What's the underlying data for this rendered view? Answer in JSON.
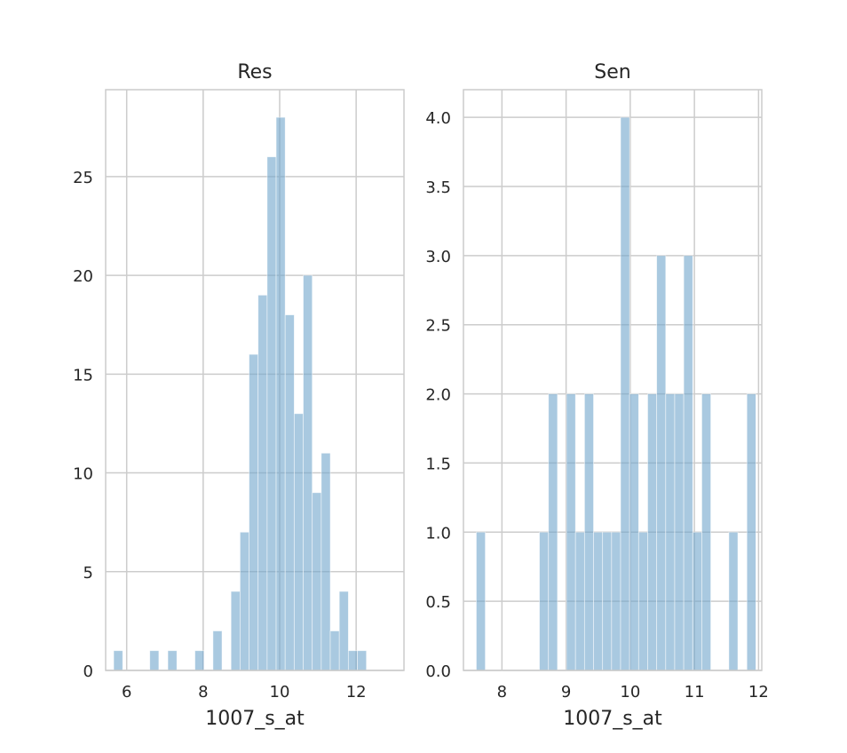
{
  "chart_data": [
    {
      "type": "bar",
      "title": "Res",
      "xlabel": "1007_s_at",
      "ylabel": "",
      "xlim": [
        5.45,
        13.25
      ],
      "ylim": [
        0,
        29.4
      ],
      "xticks": [
        6,
        8,
        10,
        12
      ],
      "yticks": [
        0,
        5,
        10,
        15,
        20,
        25
      ],
      "bin_start": 5.66,
      "bin_width": 0.236,
      "values": [
        1,
        0,
        0,
        0,
        1,
        0,
        1,
        0,
        0,
        1,
        0,
        2,
        0,
        4,
        7,
        16,
        19,
        26,
        28,
        18,
        13,
        20,
        9,
        11,
        2,
        4,
        1,
        1
      ],
      "color": "#6fa5cc",
      "grid": true
    },
    {
      "type": "bar",
      "title": "Sen",
      "xlabel": "1007_s_at",
      "ylabel": "",
      "xlim": [
        7.4,
        12.05
      ],
      "ylim": [
        0,
        4.2
      ],
      "xticks": [
        8,
        9,
        10,
        11,
        12
      ],
      "yticks": [
        0.0,
        0.5,
        1.0,
        1.5,
        2.0,
        2.5,
        3.0,
        3.5,
        4.0
      ],
      "bin_start": 7.6,
      "bin_width": 0.1406,
      "values": [
        1,
        0,
        0,
        0,
        0,
        0,
        0,
        1,
        2,
        0,
        2,
        1,
        2,
        1,
        1,
        1,
        4,
        2,
        1,
        2,
        3,
        2,
        2,
        3,
        1,
        2,
        0,
        0,
        1,
        0,
        2
      ],
      "color": "#6fa5cc",
      "grid": true
    }
  ]
}
